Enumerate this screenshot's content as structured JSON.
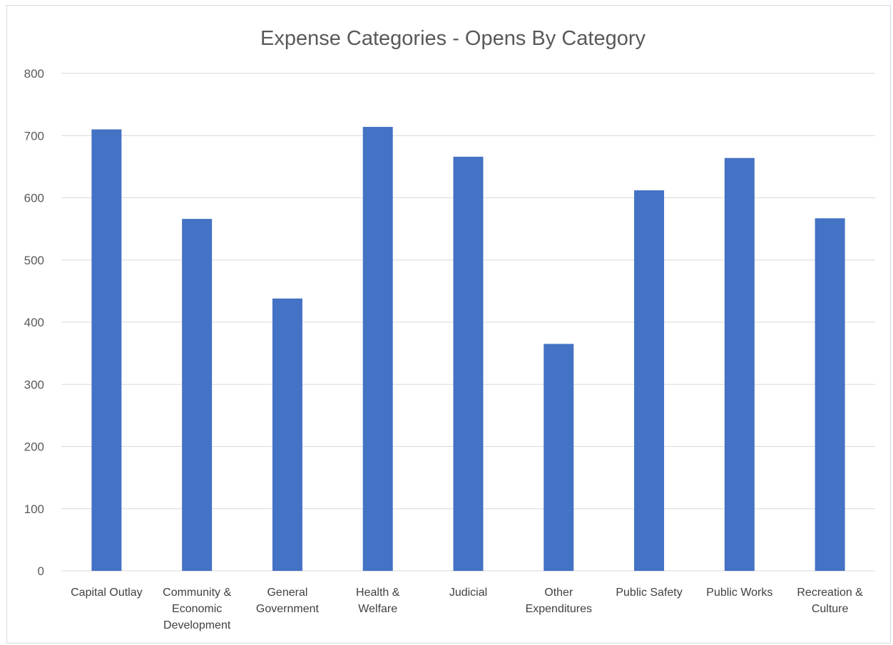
{
  "chart_data": {
    "type": "bar",
    "title": "Expense Categories - Opens By Category",
    "xlabel": "",
    "ylabel": "",
    "categories": [
      [
        "Capital Outlay"
      ],
      [
        "Community &",
        "Economic",
        "Development"
      ],
      [
        "General",
        "Government"
      ],
      [
        "Health &",
        "Welfare"
      ],
      [
        "Judicial"
      ],
      [
        "Other",
        "Expenditures"
      ],
      [
        "Public Safety"
      ],
      [
        "Public Works"
      ],
      [
        "Recreation &",
        "Culture"
      ]
    ],
    "values": [
      710,
      566,
      438,
      714,
      666,
      365,
      612,
      664,
      567
    ],
    "ylim": [
      0,
      800
    ],
    "yticks": [
      0,
      100,
      200,
      300,
      400,
      500,
      600,
      700,
      800
    ],
    "grid": true,
    "legend": "none",
    "bar_color": "#4472c4",
    "grid_color": "#d9d9d9",
    "text_color": "#595959"
  }
}
